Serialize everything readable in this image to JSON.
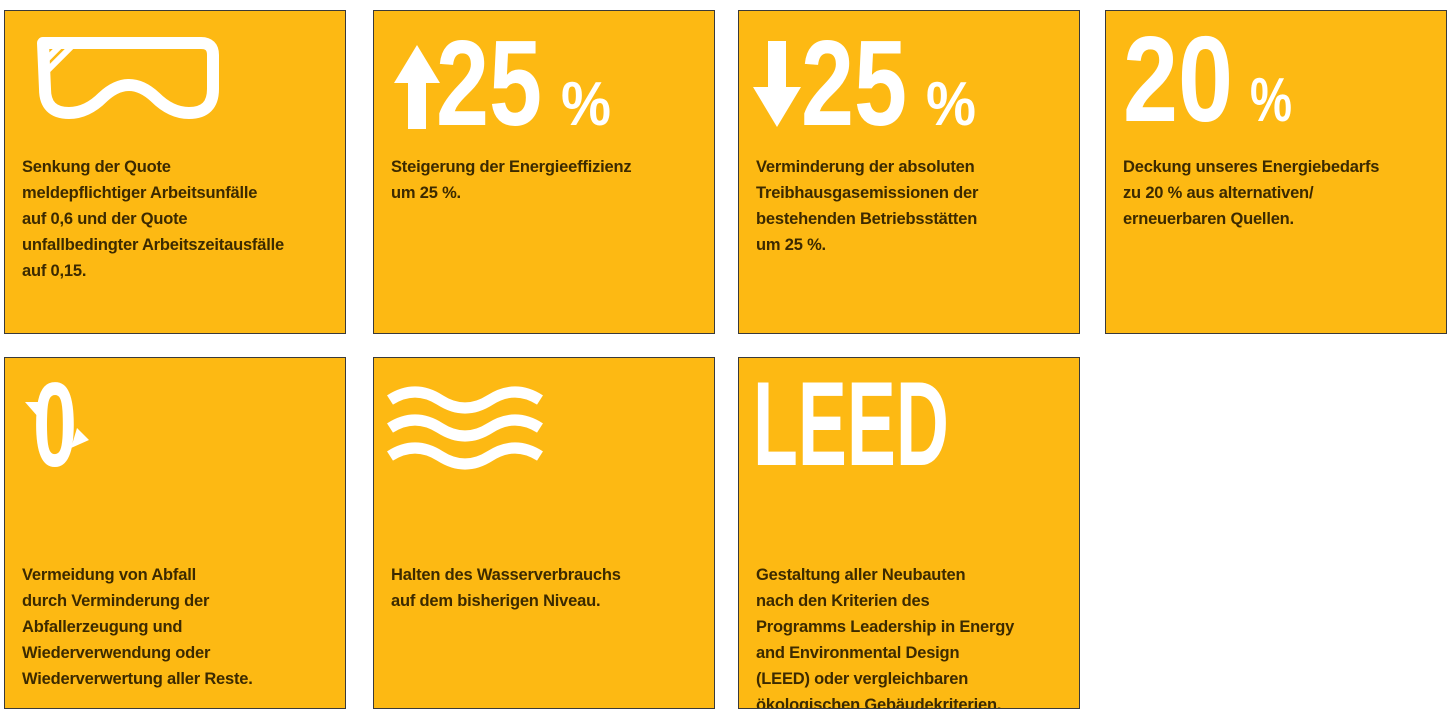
{
  "tiles": [
    {
      "lines": [
        "Senkung der Quote",
        "meldepflichtiger Arbeitsunfälle",
        "auf 0,6 und der Quote",
        "unfallbedingter Arbeitszeitausfälle",
        "auf 0,15."
      ]
    },
    {
      "headline": "25",
      "unit": "%",
      "lines": [
        "Steigerung der Energieeffizienz",
        "um 25 %."
      ]
    },
    {
      "headline": "25",
      "unit": "%",
      "lines": [
        "Verminderung der absoluten",
        "Treibhausgasemissionen der",
        "bestehenden Betriebsstätten",
        "um 25 %."
      ]
    },
    {
      "headline": "20",
      "unit": "%",
      "lines": [
        "Deckung unseres Energiebedarfs",
        "zu 20 % aus alternativen/",
        "erneuerbaren Quellen."
      ]
    },
    {
      "headline": "0",
      "lines": [
        "Vermeidung von Abfall",
        "durch Verminderung der",
        "Abfallerzeugung und",
        "Wiederverwendung oder",
        "Wiederverwertung aller Reste."
      ]
    },
    {
      "lines": [
        "Halten des Wasserverbrauchs",
        "auf dem bisherigen Niveau."
      ]
    },
    {
      "headline": "LEED",
      "lines": [
        "Gestaltung aller Neubauten",
        "nach den Kriterien des",
        "Programms Leadership in Energy",
        "and Environmental Design",
        "(LEED) oder vergleichbaren",
        "ökologischen Gebäudekriterien."
      ]
    }
  ]
}
